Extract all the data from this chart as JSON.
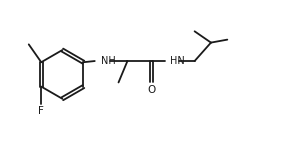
{
  "bg_color": "#ffffff",
  "line_color": "#1a1a1a",
  "text_color": "#1a1a1a",
  "label_F": "F",
  "label_NH1": "NH",
  "label_HN": "HN",
  "label_O": "O",
  "figsize": [
    3.06,
    1.5
  ],
  "dpi": 100,
  "lw": 1.3,
  "fs": 7.0
}
